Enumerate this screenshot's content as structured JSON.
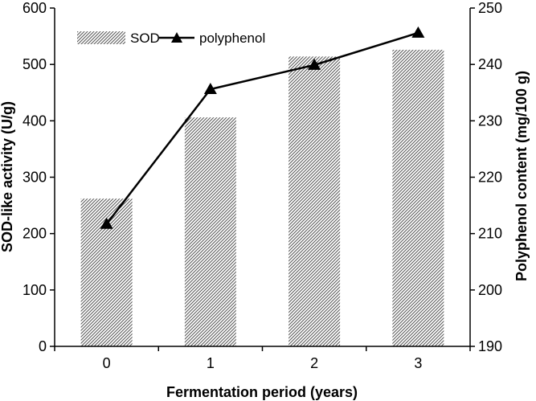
{
  "chart_data": {
    "type": "bar",
    "categories": [
      "0",
      "1",
      "2",
      "3"
    ],
    "xlabel": "Fermentation period (years)",
    "series": [
      {
        "name": "SOD",
        "type": "bar",
        "axis": "left",
        "values": [
          262,
          406,
          514,
          526
        ],
        "color": "#555555"
      },
      {
        "name": "polyphenol",
        "type": "line",
        "axis": "right",
        "marker": "triangle",
        "values": [
          211.7,
          235.6,
          239.9,
          245.6
        ],
        "color": "#000000"
      }
    ],
    "y_left": {
      "label": "SOD-like activity (U/g)",
      "ylim": [
        0,
        600
      ],
      "ticks": [
        "0",
        "100",
        "200",
        "300",
        "400",
        "500",
        "600"
      ]
    },
    "y_right": {
      "label": "Polyphenol content (mg/100 g)",
      "ylim": [
        190,
        250
      ],
      "ticks": [
        "190",
        "200",
        "210",
        "220",
        "230",
        "240",
        "250"
      ]
    },
    "legend": {
      "placement": "top-left",
      "items": [
        "SOD",
        "polyphenol"
      ]
    }
  }
}
